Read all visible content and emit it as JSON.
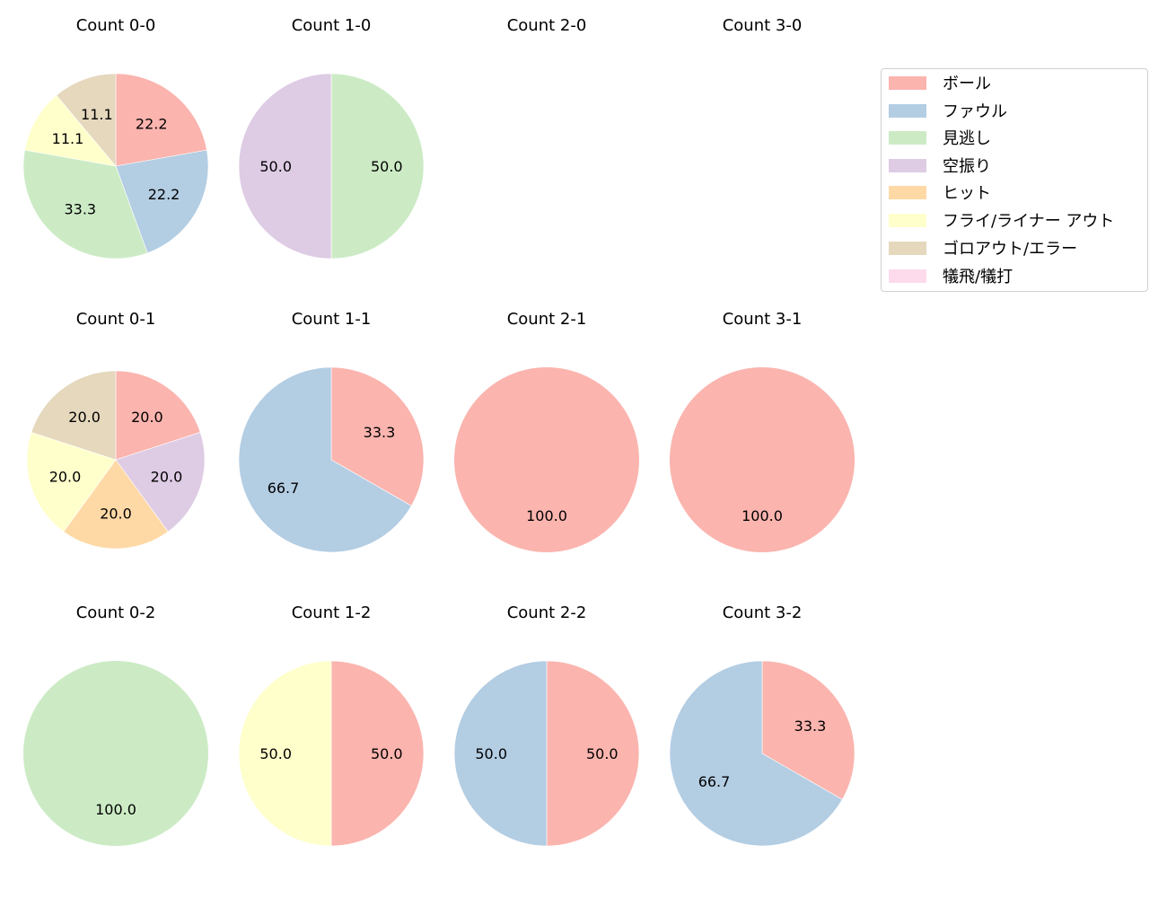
{
  "chart_data": {
    "type": "pie",
    "title": "",
    "legend": {
      "position": "upper right",
      "entries": [
        {
          "label": "ボール",
          "color": "#fbb4ae"
        },
        {
          "label": "ファウル",
          "color": "#b3cde3"
        },
        {
          "label": "見逃し",
          "color": "#ccebc5"
        },
        {
          "label": "空振り",
          "color": "#decbe4"
        },
        {
          "label": "ヒット",
          "color": "#fed9a6"
        },
        {
          "label": "フライ/ライナー アウト",
          "color": "#ffffcc"
        },
        {
          "label": "ゴロアウト/エラー",
          "color": "#e5d8bd"
        },
        {
          "label": "犠飛/犠打",
          "color": "#fddaec"
        }
      ]
    },
    "charts": [
      {
        "title": "Count 0-0",
        "row": 0,
        "col": 0,
        "radius": 103,
        "slices": [
          {
            "label": "ボール",
            "value": 22.2
          },
          {
            "label": "ファウル",
            "value": 22.2
          },
          {
            "label": "見逃し",
            "value": 33.3
          },
          {
            "label": "フライ/ライナー アウト",
            "value": 11.1
          },
          {
            "label": "ゴロアウト/エラー",
            "value": 11.1
          }
        ]
      },
      {
        "title": "Count 1-0",
        "row": 0,
        "col": 1,
        "radius": 103,
        "slices": [
          {
            "label": "見逃し",
            "value": 50.0
          },
          {
            "label": "空振り",
            "value": 50.0
          }
        ]
      },
      {
        "title": "Count 2-0",
        "row": 0,
        "col": 2,
        "radius": 103,
        "slices": []
      },
      {
        "title": "Count 3-0",
        "row": 0,
        "col": 3,
        "radius": 103,
        "slices": []
      },
      {
        "title": "Count 0-1",
        "row": 1,
        "col": 0,
        "radius": 99,
        "slices": [
          {
            "label": "ボール",
            "value": 20.0
          },
          {
            "label": "空振り",
            "value": 20.0
          },
          {
            "label": "ヒット",
            "value": 20.0
          },
          {
            "label": "フライ/ライナー アウト",
            "value": 20.0
          },
          {
            "label": "ゴロアウト/エラー",
            "value": 20.0
          }
        ]
      },
      {
        "title": "Count 1-1",
        "row": 1,
        "col": 1,
        "radius": 103,
        "slices": [
          {
            "label": "ボール",
            "value": 33.3
          },
          {
            "label": "ファウル",
            "value": 66.7
          }
        ]
      },
      {
        "title": "Count 2-1",
        "row": 1,
        "col": 2,
        "radius": 103,
        "slices": [
          {
            "label": "ボール",
            "value": 100.0
          }
        ]
      },
      {
        "title": "Count 3-1",
        "row": 1,
        "col": 3,
        "radius": 103,
        "slices": [
          {
            "label": "ボール",
            "value": 100.0
          }
        ]
      },
      {
        "title": "Count 0-2",
        "row": 2,
        "col": 0,
        "radius": 103,
        "slices": [
          {
            "label": "見逃し",
            "value": 100.0
          }
        ]
      },
      {
        "title": "Count 1-2",
        "row": 2,
        "col": 1,
        "radius": 103,
        "slices": [
          {
            "label": "ボール",
            "value": 50.0
          },
          {
            "label": "フライ/ライナー アウト",
            "value": 50.0
          }
        ]
      },
      {
        "title": "Count 2-2",
        "row": 2,
        "col": 2,
        "radius": 103,
        "slices": [
          {
            "label": "ボール",
            "value": 50.0
          },
          {
            "label": "ファウル",
            "value": 50.0
          }
        ]
      },
      {
        "title": "Count 3-2",
        "row": 2,
        "col": 3,
        "radius": 103,
        "slices": [
          {
            "label": "ボール",
            "value": 33.3
          },
          {
            "label": "ファウル",
            "value": 66.7
          }
        ]
      }
    ]
  }
}
